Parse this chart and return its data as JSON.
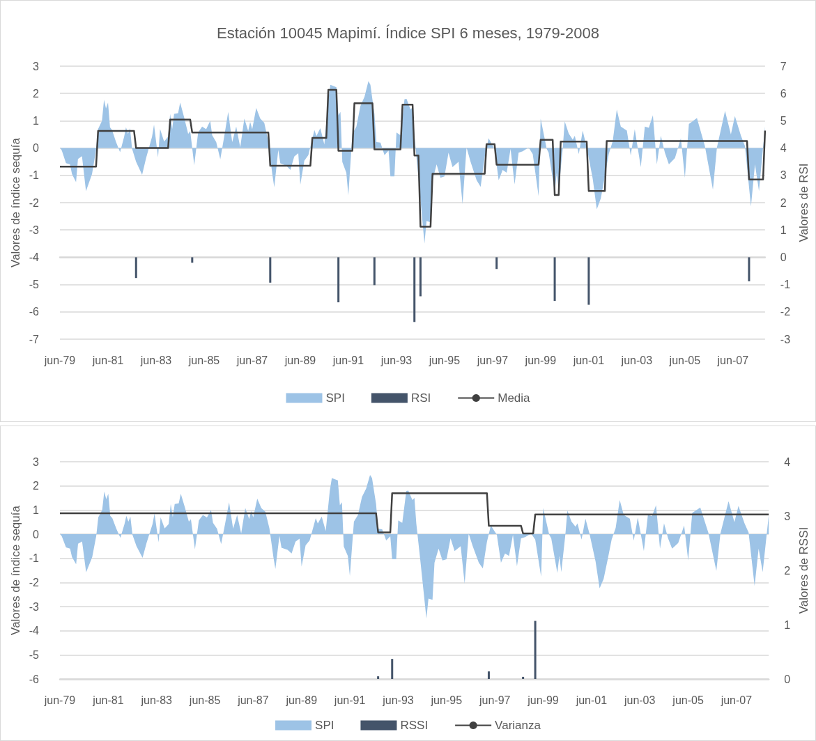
{
  "chart_data": [
    {
      "type": "area",
      "title": "Estación 10045 Mapimí. Índice SPI 6 meses, 1979-2008",
      "ylabel": "Valores de índice sequía",
      "y2label": "Valores de RSI",
      "x": [
        "1979-06",
        "1979-07",
        "1979-09",
        "1979-11",
        "1979-12",
        "1980-02",
        "1980-03",
        "1980-05",
        "1980-07",
        "1980-10",
        "1980-12",
        "1981-01",
        "1981-03",
        "1981-04",
        "1981-05",
        "1981-06",
        "1981-07",
        "1981-08",
        "1981-10",
        "1981-12",
        "1982-02",
        "1982-03",
        "1982-04",
        "1982-05",
        "1982-06",
        "1982-08",
        "1982-11",
        "1983-01",
        "1983-04",
        "1983-05",
        "1983-07",
        "1983-08",
        "1983-10",
        "1983-12",
        "1984-01",
        "1984-02",
        "1984-03",
        "1984-05",
        "1984-06",
        "1984-08",
        "1984-10",
        "1984-11",
        "1985-01",
        "1985-03",
        "1985-05",
        "1985-07",
        "1985-09",
        "1985-10",
        "1985-12",
        "1986-02",
        "1986-04",
        "1986-06",
        "1986-08",
        "1986-10",
        "1986-12",
        "1987-02",
        "1987-04",
        "1987-05",
        "1987-06",
        "1987-08",
        "1987-10",
        "1987-12",
        "1988-02",
        "1988-04",
        "1988-05",
        "1988-07",
        "1988-08",
        "1988-11",
        "1989-01",
        "1989-03",
        "1989-05",
        "1989-06",
        "1989-08",
        "1989-10",
        "1990-01",
        "1990-02",
        "1990-04",
        "1990-06",
        "1990-08",
        "1990-09",
        "1990-12",
        "1991-01",
        "1991-02",
        "1991-03",
        "1991-05",
        "1991-06",
        "1991-08",
        "1991-10",
        "1991-12",
        "1992-02",
        "1992-04",
        "1992-05",
        "1992-07",
        "1992-08",
        "1992-10",
        "1992-12",
        "1993-02",
        "1993-03",
        "1993-05",
        "1993-06",
        "1993-08",
        "1993-10",
        "1993-11",
        "1994-01",
        "1994-02",
        "1994-03",
        "1994-05",
        "1994-08",
        "1994-09",
        "1994-11",
        "1994-12",
        "1995-02",
        "1995-04",
        "1995-06",
        "1995-08",
        "1995-10",
        "1996-01",
        "1996-03",
        "1996-05",
        "1996-07",
        "1996-10",
        "1996-12",
        "1997-02",
        "1997-04",
        "1997-07",
        "1997-09",
        "1997-11",
        "1998-01",
        "1998-03",
        "1998-05",
        "1998-07",
        "1998-09",
        "1998-12",
        "1999-02",
        "1999-05",
        "1999-06",
        "1999-09",
        "1999-10",
        "2000-01",
        "2000-02",
        "2000-03",
        "2000-05",
        "2000-06",
        "2000-08",
        "2000-10",
        "2000-11",
        "2001-01",
        "2001-03",
        "2001-05",
        "2001-08",
        "2001-10",
        "2001-12",
        "2002-02",
        "2002-04",
        "2002-06",
        "2002-08",
        "2002-10",
        "2003-01",
        "2003-03",
        "2003-05",
        "2003-08",
        "2003-10",
        "2003-12",
        "2004-02",
        "2004-04",
        "2004-06",
        "2004-08",
        "2004-10",
        "2005-01",
        "2005-04",
        "2005-06",
        "2005-08",
        "2005-12",
        "2006-04",
        "2006-08",
        "2006-10",
        "2007-02",
        "2007-05",
        "2007-07",
        "2007-10",
        "2007-12",
        "2008-03",
        "2008-05",
        "2008-07",
        "2008-10"
      ],
      "series": [
        {
          "name": "SPI",
          "color": "#9dc3e6",
          "values": [
            0.03,
            -0.1,
            -0.55,
            -0.6,
            -0.95,
            -1.25,
            -0.4,
            -0.3,
            -1.58,
            -0.95,
            -0.07,
            0.7,
            1.0,
            1.77,
            1.45,
            1.67,
            0.76,
            0.66,
            0.22,
            -0.15,
            0.42,
            0.76,
            0.52,
            0.73,
            -0.02,
            -0.5,
            -0.98,
            -0.36,
            0.42,
            0.86,
            -0.34,
            0.7,
            0.24,
            0.42,
            1.25,
            0.7,
            1.25,
            1.28,
            1.67,
            1.12,
            0.52,
            0.62,
            -0.63,
            0.57,
            0.79,
            0.69,
            1.0,
            0.47,
            0.22,
            -0.41,
            0.42,
            1.32,
            0.22,
            0.79,
            0.03,
            1.08,
            0.63,
            0.96,
            0.69,
            1.47,
            1.08,
            0.93,
            0.24,
            -0.95,
            -1.44,
            -0.07,
            -0.56,
            -0.65,
            -0.8,
            -0.31,
            -0.19,
            -1.34,
            -0.46,
            -0.26,
            0.66,
            0.44,
            0.73,
            0.13,
            1.79,
            2.32,
            2.23,
            1.2,
            1.32,
            -0.51,
            -0.9,
            -1.73,
            0.52,
            0.79,
            1.54,
            1.88,
            2.45,
            2.32,
            1.25,
            0.22,
            0.2,
            -0.26,
            -0.09,
            -1.04,
            -1.04,
            0.57,
            0.47,
            1.79,
            1.8,
            1.41,
            1.5,
            0.45,
            -1.09,
            -3.5,
            -2.67,
            -2.72,
            -1.18,
            -0.6,
            -1.09,
            -1.04,
            -0.17,
            -0.7,
            -0.5,
            -2.05,
            0.02,
            -0.5,
            -1.18,
            -1.42,
            -0.32,
            0.36,
            -0.03,
            -1.18,
            -0.8,
            -0.9,
            -0.03,
            -1.33,
            -0.17,
            -0.12,
            0.02,
            -0.22,
            -1.76,
            1.08,
            -0.03,
            -0.17,
            -1.61,
            -0.9,
            -1.57,
            -0.03,
            0.98,
            0.53,
            0.31,
            0.45,
            -0.22,
            0.64,
            0.02,
            -1.13,
            -2.24,
            -1.85,
            -1.04,
            -0.22,
            0.26,
            1.41,
            0.79,
            0.64,
            -0.27,
            0.69,
            -0.7,
            0.79,
            0.74,
            1.2,
            -0.6,
            0.45,
            -0.17,
            -0.6,
            -0.37,
            0.36,
            -1.09,
            0.88,
            1.1,
            0.07,
            -1.52,
            0.02,
            1.36,
            0.5,
            1.17,
            0.45,
            0.07,
            -2.14,
            -0.6,
            -1.57,
            0.79
          ]
        },
        {
          "name": "RSI",
          "type": "bar",
          "axis": "y2",
          "color": "#44546a",
          "x": [
            "1982-08",
            "1984-12",
            "1988-03",
            "1991-01",
            "1992-07",
            "1994-03",
            "1994-06",
            "1997-08",
            "2000-01",
            "2001-06",
            "2008-02"
          ],
          "values": [
            -0.76,
            -0.2,
            -0.93,
            -1.65,
            -1.02,
            -2.37,
            -1.43,
            -0.43,
            -1.6,
            -1.74,
            -0.88
          ]
        },
        {
          "name": "Media",
          "type": "line",
          "axis": "y2",
          "color": "#404040",
          "x": [
            "1979-06",
            "1980-12",
            "1981-01",
            "1982-07",
            "1982-08",
            "1983-12",
            "1984-01",
            "1984-11",
            "1984-12",
            "1988-02",
            "1988-03",
            "1989-11",
            "1989-12",
            "1990-07",
            "1990-08",
            "1990-12",
            "1991-01",
            "1991-08",
            "1991-09",
            "1992-06",
            "1992-07",
            "1993-08",
            "1993-09",
            "1994-02",
            "1994-03",
            "1994-05",
            "1994-06",
            "1994-11",
            "1994-12",
            "1997-02",
            "1997-03",
            "1997-07",
            "1997-08",
            "1999-05",
            "1999-06",
            "1999-12",
            "2000-01",
            "2000-03",
            "2000-04",
            "2001-05",
            "2001-06",
            "2002-02",
            "2002-03",
            "2008-01",
            "2008-02",
            "2008-09",
            "2008-10"
          ],
          "values": [
            3.32,
            3.32,
            4.63,
            4.63,
            4.0,
            4.0,
            5.04,
            5.04,
            4.57,
            4.57,
            3.35,
            3.35,
            4.37,
            4.37,
            6.13,
            6.13,
            3.9,
            3.9,
            5.64,
            5.64,
            3.95,
            3.95,
            5.59,
            5.59,
            3.73,
            3.73,
            1.12,
            1.12,
            3.06,
            3.06,
            4.14,
            4.14,
            3.39,
            3.39,
            4.3,
            4.3,
            2.28,
            2.28,
            4.24,
            4.24,
            2.43,
            2.43,
            4.26,
            4.26,
            2.85,
            2.85,
            4.64
          ]
        }
      ],
      "xlim": [
        "1979-06",
        "2008-10"
      ],
      "xticks": [
        {
          "value": "1979-06",
          "label": "jun-79"
        },
        {
          "value": "1981-06",
          "label": "jun-81"
        },
        {
          "value": "1983-06",
          "label": "jun-83"
        },
        {
          "value": "1985-06",
          "label": "jun-85"
        },
        {
          "value": "1987-06",
          "label": "jun-87"
        },
        {
          "value": "1989-06",
          "label": "jun-89"
        },
        {
          "value": "1991-06",
          "label": "jun-91"
        },
        {
          "value": "1993-06",
          "label": "jun-93"
        },
        {
          "value": "1995-06",
          "label": "jun-95"
        },
        {
          "value": "1997-06",
          "label": "jun-97"
        },
        {
          "value": "1999-06",
          "label": "jun-99"
        },
        {
          "value": "2001-06",
          "label": "jun-01"
        },
        {
          "value": "2003-06",
          "label": "jun-03"
        },
        {
          "value": "2005-06",
          "label": "jun-05"
        },
        {
          "value": "2007-06",
          "label": "jun-07"
        }
      ],
      "ylim": [
        -7,
        3
      ],
      "yticks": [
        -7,
        -6,
        -5,
        -4,
        -3,
        -2,
        -1,
        0,
        1,
        2,
        3
      ],
      "y2lim": [
        -3,
        7
      ],
      "y2ticks": [
        -3,
        -2,
        -1,
        0,
        1,
        2,
        3,
        4,
        5,
        6,
        7
      ],
      "grid": "y",
      "legend": "bottom",
      "marker": "none"
    },
    {
      "type": "area",
      "ylabel": "Valores de índice sequía",
      "y2label": "Valores de RSSI",
      "x": [
        "1979-06",
        "1979-07",
        "1979-09",
        "1979-11",
        "1979-12",
        "1980-02",
        "1980-03",
        "1980-05",
        "1980-07",
        "1980-10",
        "1980-12",
        "1981-01",
        "1981-03",
        "1981-04",
        "1981-05",
        "1981-06",
        "1981-07",
        "1981-08",
        "1981-10",
        "1981-12",
        "1982-02",
        "1982-03",
        "1982-04",
        "1982-05",
        "1982-06",
        "1982-08",
        "1982-11",
        "1983-01",
        "1983-04",
        "1983-05",
        "1983-07",
        "1983-08",
        "1983-10",
        "1983-12",
        "1984-01",
        "1984-02",
        "1984-03",
        "1984-05",
        "1984-06",
        "1984-08",
        "1984-10",
        "1984-11",
        "1985-01",
        "1985-03",
        "1985-05",
        "1985-07",
        "1985-09",
        "1985-10",
        "1985-12",
        "1986-02",
        "1986-04",
        "1986-06",
        "1986-08",
        "1986-10",
        "1986-12",
        "1987-02",
        "1987-04",
        "1987-05",
        "1987-06",
        "1987-08",
        "1987-10",
        "1987-12",
        "1988-02",
        "1988-04",
        "1988-05",
        "1988-07",
        "1988-08",
        "1988-11",
        "1989-01",
        "1989-03",
        "1989-05",
        "1989-06",
        "1989-08",
        "1989-10",
        "1990-01",
        "1990-02",
        "1990-04",
        "1990-06",
        "1990-08",
        "1990-09",
        "1990-12",
        "1991-01",
        "1991-02",
        "1991-03",
        "1991-05",
        "1991-06",
        "1991-08",
        "1991-10",
        "1991-12",
        "1992-02",
        "1992-04",
        "1992-05",
        "1992-07",
        "1992-08",
        "1992-10",
        "1992-12",
        "1993-02",
        "1993-03",
        "1993-05",
        "1993-06",
        "1993-08",
        "1993-10",
        "1993-11",
        "1994-01",
        "1994-02",
        "1994-03",
        "1994-05",
        "1994-08",
        "1994-09",
        "1994-11",
        "1994-12",
        "1995-02",
        "1995-04",
        "1995-06",
        "1995-08",
        "1995-10",
        "1996-01",
        "1996-03",
        "1996-05",
        "1996-07",
        "1996-10",
        "1996-12",
        "1997-02",
        "1997-04",
        "1997-07",
        "1997-09",
        "1997-11",
        "1998-01",
        "1998-03",
        "1998-05",
        "1998-07",
        "1998-09",
        "1998-12",
        "1999-02",
        "1999-05",
        "1999-06",
        "1999-09",
        "1999-10",
        "2000-01",
        "2000-02",
        "2000-03",
        "2000-05",
        "2000-06",
        "2000-08",
        "2000-10",
        "2000-11",
        "2001-01",
        "2001-03",
        "2001-05",
        "2001-08",
        "2001-10",
        "2001-12",
        "2002-02",
        "2002-04",
        "2002-06",
        "2002-08",
        "2002-10",
        "2003-01",
        "2003-03",
        "2003-05",
        "2003-08",
        "2003-10",
        "2003-12",
        "2004-02",
        "2004-04",
        "2004-06",
        "2004-08",
        "2004-10",
        "2005-01",
        "2005-04",
        "2005-06",
        "2005-08",
        "2005-12",
        "2006-04",
        "2006-08",
        "2006-10",
        "2007-02",
        "2007-05",
        "2007-07",
        "2007-10",
        "2007-12",
        "2008-03",
        "2008-05",
        "2008-07",
        "2008-10"
      ],
      "series": [
        {
          "name": "SPI",
          "color": "#9dc3e6",
          "values": [
            0.03,
            -0.1,
            -0.55,
            -0.6,
            -0.95,
            -1.25,
            -0.4,
            -0.3,
            -1.58,
            -0.95,
            -0.07,
            0.7,
            1.0,
            1.77,
            1.45,
            1.67,
            0.76,
            0.66,
            0.22,
            -0.15,
            0.42,
            0.76,
            0.52,
            0.73,
            -0.02,
            -0.5,
            -0.98,
            -0.36,
            0.42,
            0.86,
            -0.34,
            0.7,
            0.24,
            0.42,
            1.25,
            0.7,
            1.25,
            1.28,
            1.67,
            1.12,
            0.52,
            0.62,
            -0.63,
            0.57,
            0.79,
            0.69,
            1.0,
            0.47,
            0.22,
            -0.41,
            0.42,
            1.32,
            0.22,
            0.79,
            0.03,
            1.08,
            0.63,
            0.96,
            0.69,
            1.47,
            1.08,
            0.93,
            0.24,
            -0.95,
            -1.44,
            -0.07,
            -0.56,
            -0.65,
            -0.8,
            -0.31,
            -0.19,
            -1.34,
            -0.46,
            -0.26,
            0.66,
            0.44,
            0.73,
            0.13,
            1.79,
            2.32,
            2.23,
            1.2,
            1.32,
            -0.51,
            -0.9,
            -1.73,
            0.52,
            0.79,
            1.54,
            1.88,
            2.45,
            2.32,
            1.25,
            0.22,
            0.2,
            -0.26,
            -0.09,
            -1.04,
            -1.04,
            0.57,
            0.47,
            1.79,
            1.8,
            1.41,
            1.5,
            0.45,
            -1.09,
            -3.5,
            -2.67,
            -2.72,
            -1.18,
            -0.6,
            -1.09,
            -1.04,
            -0.17,
            -0.7,
            -0.5,
            -2.05,
            0.02,
            -0.5,
            -1.18,
            -1.42,
            -0.32,
            0.36,
            -0.03,
            -1.18,
            -0.8,
            -0.9,
            -0.03,
            -1.33,
            -0.17,
            -0.12,
            0.02,
            -0.22,
            -1.76,
            1.08,
            -0.03,
            -0.17,
            -1.61,
            -0.9,
            -1.57,
            -0.03,
            0.98,
            0.53,
            0.31,
            0.45,
            -0.22,
            0.64,
            0.02,
            -1.13,
            -2.24,
            -1.85,
            -1.04,
            -0.22,
            0.26,
            1.41,
            0.79,
            0.64,
            -0.27,
            0.69,
            -0.7,
            0.79,
            0.74,
            1.2,
            -0.6,
            0.45,
            -0.17,
            -0.6,
            -0.37,
            0.36,
            -1.09,
            0.88,
            1.1,
            0.07,
            -1.52,
            0.02,
            1.36,
            0.5,
            1.17,
            0.45,
            0.07,
            -2.14,
            -0.6,
            -1.57,
            0.79
          ]
        },
        {
          "name": "RSSI",
          "type": "bar",
          "axis": "y2",
          "color": "#44546a",
          "x": [
            "1992-08",
            "1993-03",
            "1997-03",
            "1998-08",
            "1999-02"
          ],
          "values": [
            0.05,
            0.37,
            0.14,
            0.04,
            1.07
          ]
        },
        {
          "name": "Varianza",
          "type": "line",
          "axis": "y2",
          "color": "#404040",
          "x": [
            "1979-06",
            "1992-07",
            "1992-08",
            "1993-02",
            "1993-03",
            "1997-02",
            "1997-03",
            "1998-07",
            "1998-08",
            "1999-01",
            "1999-02",
            "2008-10"
          ],
          "values": [
            3.05,
            3.05,
            2.7,
            2.7,
            3.42,
            3.42,
            2.82,
            2.82,
            2.68,
            2.68,
            3.03,
            3.03
          ]
        }
      ],
      "xlim": [
        "1979-06",
        "2008-10"
      ],
      "xticks": [
        {
          "value": "1979-06",
          "label": "jun-79"
        },
        {
          "value": "1981-06",
          "label": "jun-81"
        },
        {
          "value": "1983-06",
          "label": "jun-83"
        },
        {
          "value": "1985-06",
          "label": "jun-85"
        },
        {
          "value": "1987-06",
          "label": "jun-87"
        },
        {
          "value": "1989-06",
          "label": "jun-89"
        },
        {
          "value": "1991-06",
          "label": "jun-91"
        },
        {
          "value": "1993-06",
          "label": "jun-93"
        },
        {
          "value": "1995-06",
          "label": "jun-95"
        },
        {
          "value": "1997-06",
          "label": "jun-97"
        },
        {
          "value": "1999-06",
          "label": "jun-99"
        },
        {
          "value": "2001-06",
          "label": "jun-01"
        },
        {
          "value": "2003-06",
          "label": "jun-03"
        },
        {
          "value": "2005-06",
          "label": "jun-05"
        },
        {
          "value": "2007-06",
          "label": "jun-07"
        }
      ],
      "ylim": [
        -6,
        3
      ],
      "yticks": [
        -6,
        -5,
        -4,
        -3,
        -2,
        -1,
        0,
        1,
        2,
        3
      ],
      "y2lim": [
        0,
        4
      ],
      "y2ticks": [
        0,
        1,
        2,
        3,
        4
      ],
      "grid": "y",
      "legend": "bottom",
      "marker": "none"
    }
  ]
}
